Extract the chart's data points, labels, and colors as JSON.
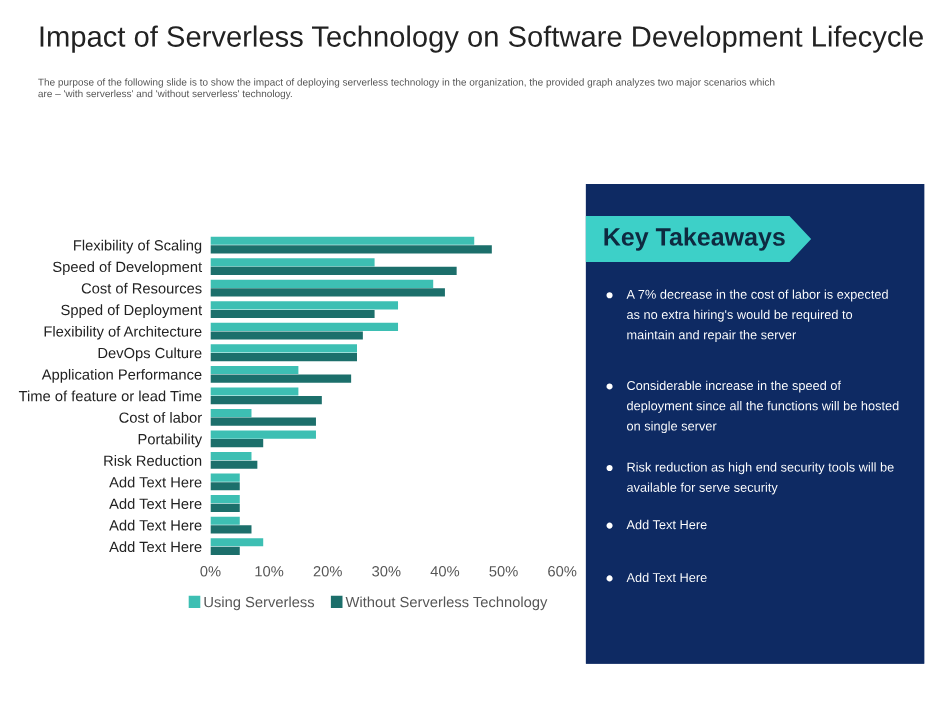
{
  "chart_data": [
    {
      "type": "bar",
      "orientation": "horizontal",
      "title": "Impact of Serverless Technology on Software Development Lifecycle",
      "subtitle": "The purpose of the following slide is to show the impact of deploying serverless technology in the organization, the provided graph analyzes two major scenarios which\nare – 'with serverless' and 'without serverless' technology.",
      "categories": [
        "Flexibility of Scaling",
        "Speed of Development",
        "Cost of Resources",
        "Spped of Deployment",
        "Flexibility of Architecture",
        "DevOps Culture",
        "Application Performance",
        "Time of feature or lead Time",
        "Cost of labor",
        "Portability",
        "Risk Reduction",
        "Add Text Here",
        "Add Text Here",
        "Add Text Here",
        "Add Text Here"
      ],
      "series": [
        {
          "name": "Using Serverless",
          "color": "#3dbfb3",
          "values": [
            45,
            28,
            38,
            32,
            32,
            25,
            15,
            15,
            7,
            18,
            7,
            5,
            5,
            5,
            9
          ]
        },
        {
          "name": "Without Serverless Technology",
          "color": "#1c6f6b",
          "values": [
            48,
            42,
            40,
            28,
            26,
            25,
            24,
            19,
            18,
            9,
            8,
            5,
            5,
            7,
            5
          ]
        }
      ],
      "xlim": [
        0,
        60
      ],
      "xticks": [
        {
          "value": 0,
          "label": "0%"
        },
        {
          "value": 10,
          "label": "10%"
        },
        {
          "value": 20,
          "label": "20%"
        },
        {
          "value": 30,
          "label": "30%"
        },
        {
          "value": 40,
          "label": "40%"
        },
        {
          "value": 50,
          "label": "50%"
        },
        {
          "value": 60,
          "label": "60%"
        }
      ],
      "grid": false,
      "legend": "bottom"
    },
    {
      "type": "other",
      "title": "Key Takeaways",
      "annotations": [
        "A 7% decrease in the cost of labor is expected\nas no extra hiring's would be required to\nmaintain and repair the server",
        "Considerable increase in the speed of\ndeployment since all the functions will be hosted\non single server",
        "Risk reduction as high end security tools will be\navailable for serve security",
        "Add Text Here",
        "Add Text Here"
      ]
    }
  ]
}
